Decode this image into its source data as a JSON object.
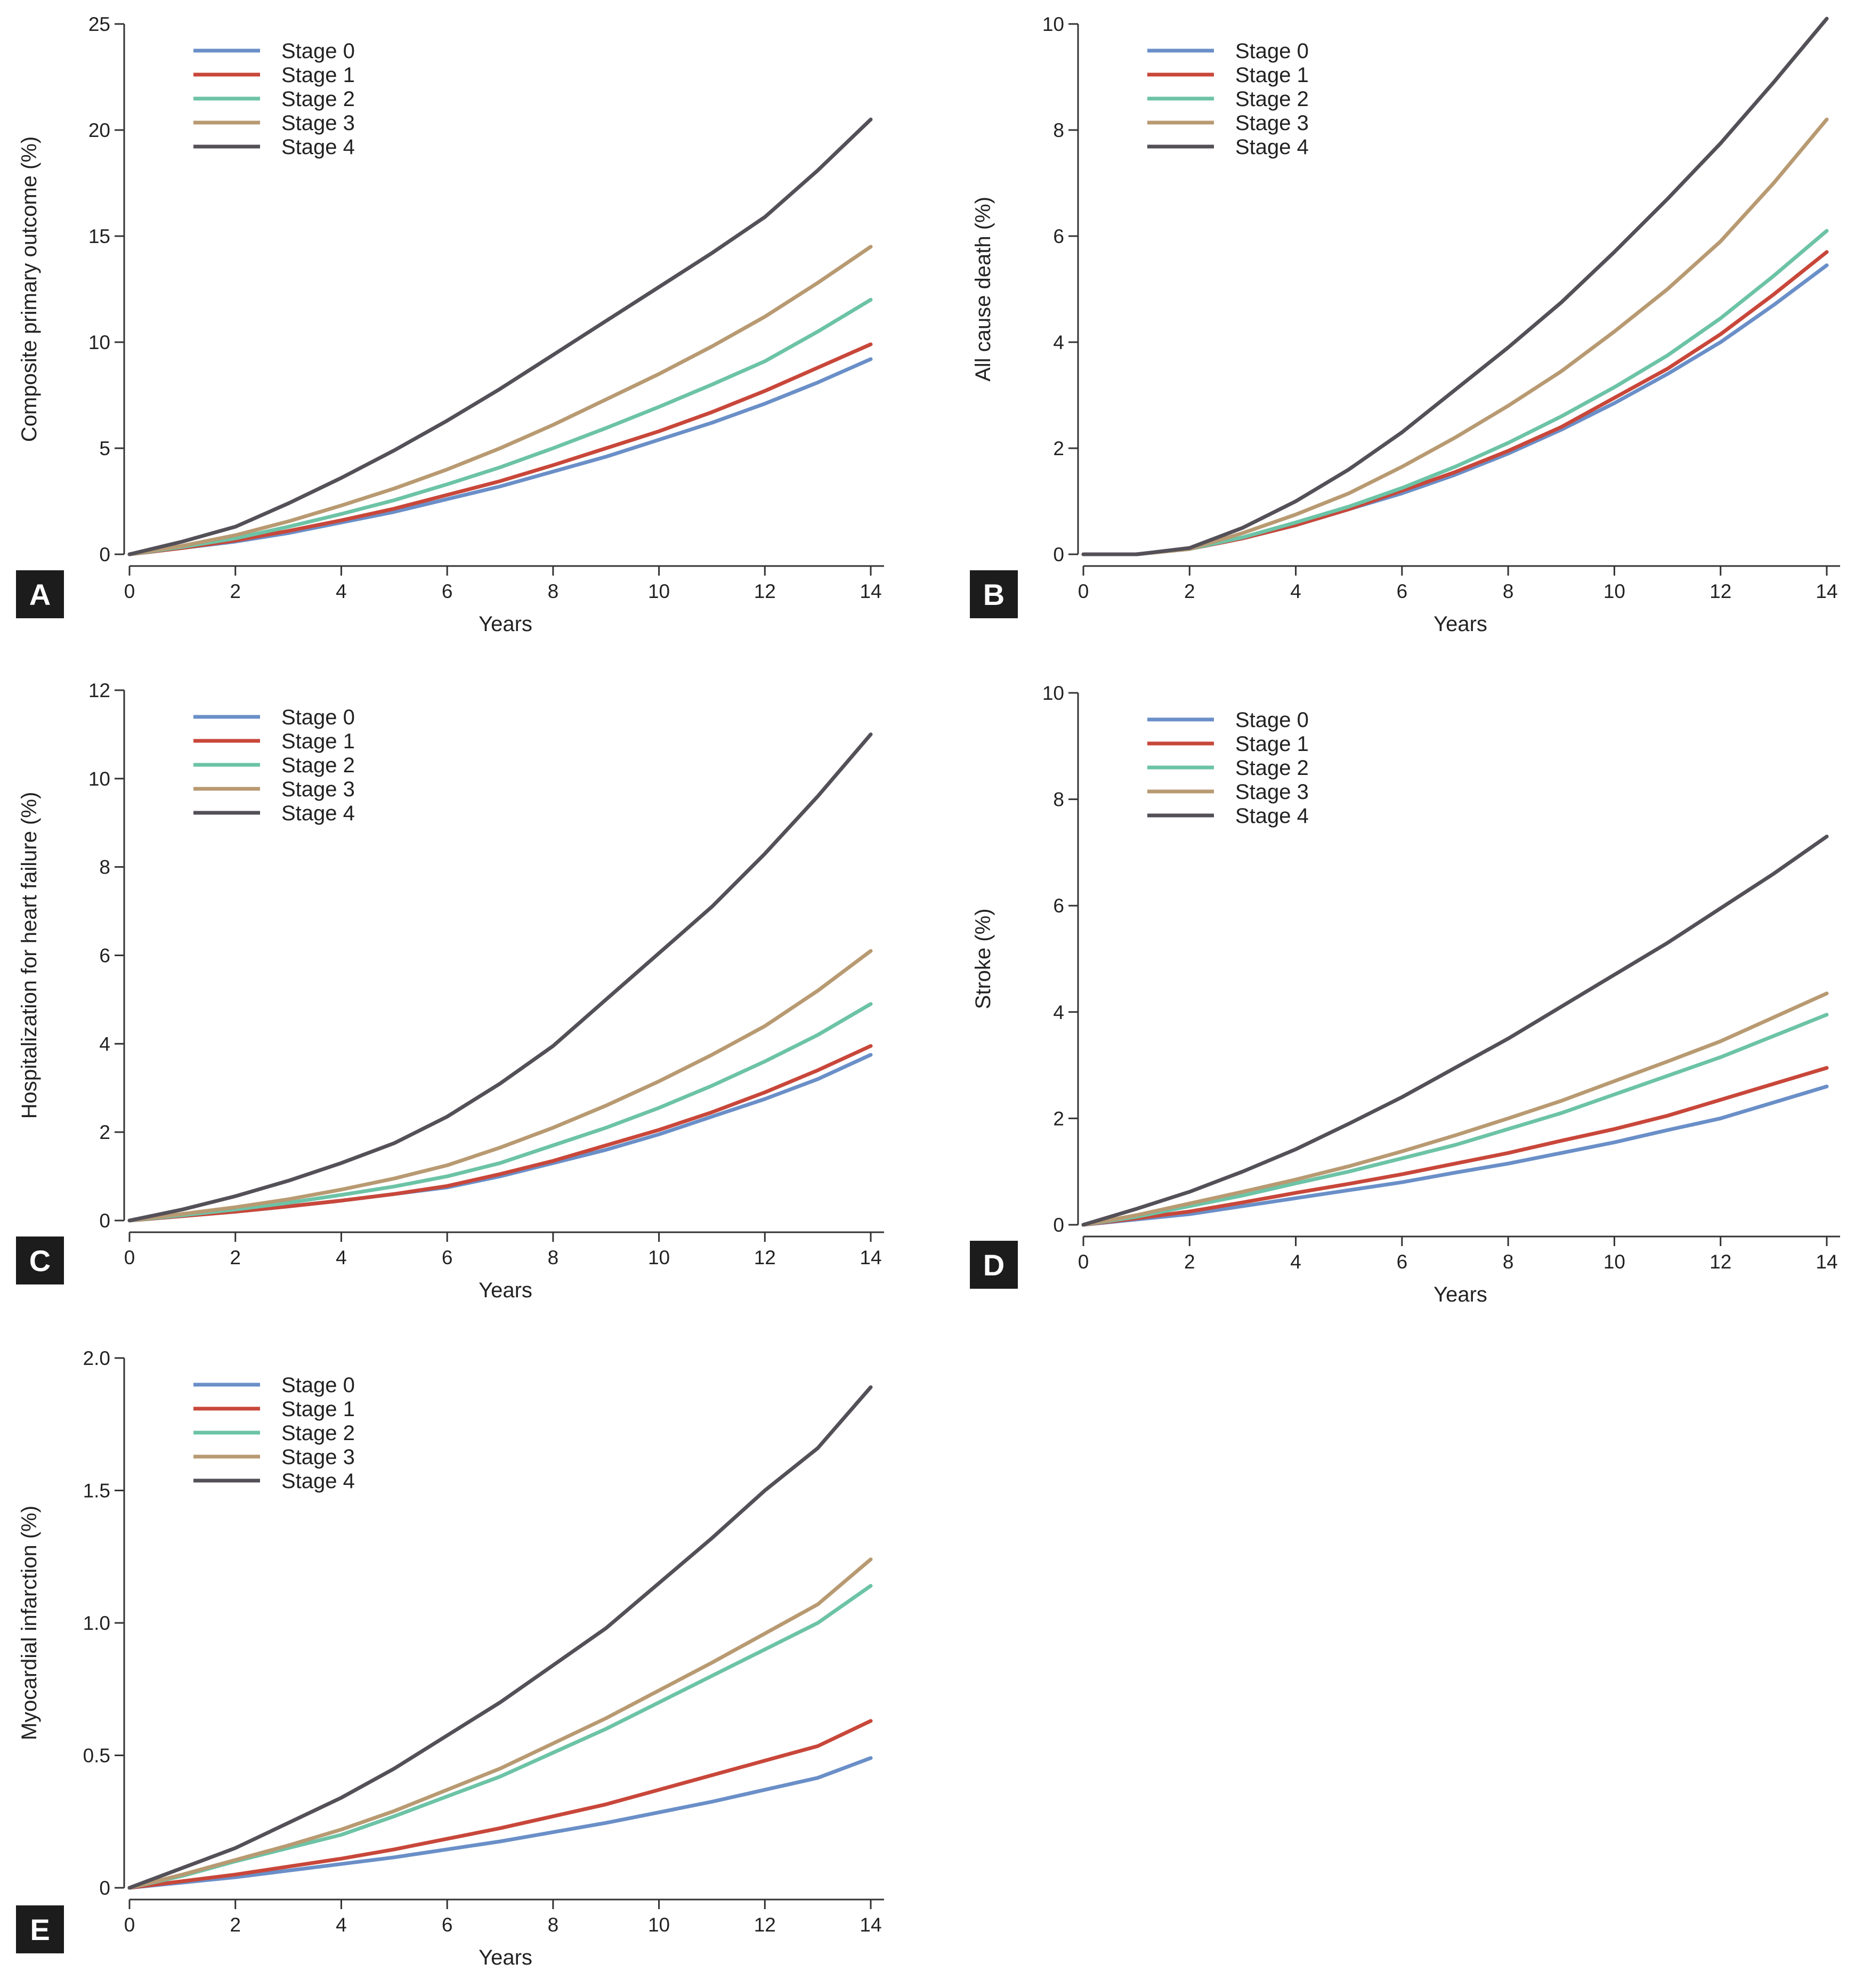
{
  "figure": {
    "panels": [
      "A",
      "B",
      "C",
      "D",
      "E"
    ]
  },
  "chart_data": [
    {
      "panel": "A",
      "type": "line",
      "title": "",
      "xlabel": "Years",
      "ylabel": "Composite primary outcome (%)",
      "xlim": [
        0,
        14
      ],
      "ylim": [
        0,
        25
      ],
      "xticks": [
        0,
        2,
        4,
        6,
        8,
        10,
        12,
        14
      ],
      "yticks": [
        0,
        5,
        10,
        15,
        20,
        25
      ],
      "x": [
        0,
        1,
        2,
        3,
        4,
        5,
        6,
        7,
        8,
        9,
        10,
        11,
        12,
        13,
        14
      ],
      "legend": "top-left",
      "series": [
        {
          "name": "Stage 0",
          "color": "#6a8fc8",
          "values": [
            0,
            0.3,
            0.6,
            1.0,
            1.5,
            2.0,
            2.6,
            3.2,
            3.9,
            4.6,
            5.4,
            6.2,
            7.1,
            8.1,
            9.2
          ]
        },
        {
          "name": "Stage 1",
          "color": "#c8473a",
          "values": [
            0,
            0.3,
            0.65,
            1.1,
            1.6,
            2.15,
            2.8,
            3.45,
            4.2,
            5.0,
            5.8,
            6.7,
            7.7,
            8.8,
            9.9
          ]
        },
        {
          "name": "Stage 2",
          "color": "#6cc3a6",
          "values": [
            0,
            0.35,
            0.75,
            1.3,
            1.9,
            2.55,
            3.3,
            4.1,
            5.0,
            5.95,
            6.95,
            8.0,
            9.1,
            10.5,
            12.0
          ]
        },
        {
          "name": "Stage 3",
          "color": "#b89a72",
          "values": [
            0,
            0.4,
            0.9,
            1.55,
            2.3,
            3.1,
            4.0,
            5.0,
            6.1,
            7.3,
            8.5,
            9.8,
            11.2,
            12.8,
            14.5
          ]
        },
        {
          "name": "Stage 4",
          "color": "#545058",
          "values": [
            0,
            0.6,
            1.3,
            2.4,
            3.6,
            4.9,
            6.3,
            7.8,
            9.4,
            11.0,
            12.6,
            14.2,
            15.9,
            18.1,
            20.5
          ]
        }
      ]
    },
    {
      "panel": "B",
      "type": "line",
      "title": "",
      "xlabel": "Years",
      "ylabel": "All cause death (%)",
      "xlim": [
        0,
        14
      ],
      "ylim": [
        0,
        10
      ],
      "xticks": [
        0,
        2,
        4,
        6,
        8,
        10,
        12,
        14
      ],
      "yticks": [
        0,
        2,
        4,
        6,
        8,
        10
      ],
      "x": [
        0,
        1,
        2,
        3,
        4,
        5,
        6,
        7,
        8,
        9,
        10,
        11,
        12,
        13,
        14
      ],
      "legend": "top-left",
      "series": [
        {
          "name": "Stage 0",
          "color": "#6a8fc8",
          "values": [
            0,
            0,
            0.1,
            0.3,
            0.55,
            0.85,
            1.15,
            1.5,
            1.9,
            2.35,
            2.85,
            3.4,
            4.0,
            4.7,
            5.45
          ]
        },
        {
          "name": "Stage 1",
          "color": "#c8473a",
          "values": [
            0,
            0,
            0.1,
            0.3,
            0.55,
            0.85,
            1.2,
            1.55,
            1.95,
            2.4,
            2.95,
            3.5,
            4.15,
            4.9,
            5.7
          ]
        },
        {
          "name": "Stage 2",
          "color": "#6cc3a6",
          "values": [
            0,
            0,
            0.1,
            0.32,
            0.6,
            0.9,
            1.25,
            1.65,
            2.1,
            2.6,
            3.15,
            3.75,
            4.45,
            5.25,
            6.1
          ]
        },
        {
          "name": "Stage 3",
          "color": "#b89a72",
          "values": [
            0,
            0,
            0.1,
            0.4,
            0.75,
            1.15,
            1.65,
            2.2,
            2.8,
            3.45,
            4.2,
            5.0,
            5.9,
            7.0,
            8.2
          ]
        },
        {
          "name": "Stage 4",
          "color": "#545058",
          "values": [
            0,
            0,
            0.12,
            0.5,
            1.0,
            1.6,
            2.3,
            3.1,
            3.9,
            4.75,
            5.7,
            6.7,
            7.75,
            8.9,
            10.1
          ]
        }
      ]
    },
    {
      "panel": "C",
      "type": "line",
      "title": "",
      "xlabel": "Years",
      "ylabel": "Hospitalization for heart failure (%)",
      "xlim": [
        0,
        14
      ],
      "ylim": [
        0,
        12
      ],
      "xticks": [
        0,
        2,
        4,
        6,
        8,
        10,
        12,
        14
      ],
      "yticks": [
        0,
        2,
        4,
        6,
        8,
        10,
        12
      ],
      "x": [
        0,
        1,
        2,
        3,
        4,
        5,
        6,
        7,
        8,
        9,
        10,
        11,
        12,
        13,
        14
      ],
      "legend": "top-left",
      "series": [
        {
          "name": "Stage 0",
          "color": "#6a8fc8",
          "values": [
            0,
            0.1,
            0.2,
            0.32,
            0.45,
            0.6,
            0.75,
            1.0,
            1.3,
            1.6,
            1.95,
            2.35,
            2.75,
            3.2,
            3.75
          ]
        },
        {
          "name": "Stage 1",
          "color": "#c8473a",
          "values": [
            0,
            0.1,
            0.2,
            0.32,
            0.45,
            0.6,
            0.78,
            1.05,
            1.35,
            1.7,
            2.05,
            2.45,
            2.9,
            3.4,
            3.95
          ]
        },
        {
          "name": "Stage 2",
          "color": "#6cc3a6",
          "values": [
            0,
            0.12,
            0.25,
            0.4,
            0.58,
            0.77,
            1.0,
            1.3,
            1.7,
            2.1,
            2.55,
            3.05,
            3.6,
            4.2,
            4.9
          ]
        },
        {
          "name": "Stage 3",
          "color": "#b89a72",
          "values": [
            0,
            0.15,
            0.3,
            0.48,
            0.7,
            0.95,
            1.25,
            1.65,
            2.1,
            2.6,
            3.15,
            3.75,
            4.4,
            5.2,
            6.1
          ]
        },
        {
          "name": "Stage 4",
          "color": "#545058",
          "values": [
            0,
            0.25,
            0.55,
            0.9,
            1.3,
            1.75,
            2.35,
            3.1,
            3.95,
            5.0,
            6.05,
            7.1,
            8.3,
            9.6,
            11.0
          ]
        }
      ]
    },
    {
      "panel": "D",
      "type": "line",
      "title": "",
      "xlabel": "Years",
      "ylabel": "Stroke (%)",
      "xlim": [
        0,
        14
      ],
      "ylim": [
        0,
        10
      ],
      "xticks": [
        0,
        2,
        4,
        6,
        8,
        10,
        12,
        14
      ],
      "yticks": [
        0,
        2,
        4,
        6,
        8,
        10
      ],
      "x": [
        0,
        1,
        2,
        3,
        4,
        5,
        6,
        7,
        8,
        9,
        10,
        11,
        12,
        13,
        14
      ],
      "legend": "top-left",
      "series": [
        {
          "name": "Stage 0",
          "color": "#6a8fc8",
          "values": [
            0,
            0.1,
            0.2,
            0.35,
            0.5,
            0.65,
            0.8,
            0.98,
            1.15,
            1.35,
            1.55,
            1.78,
            2.0,
            2.3,
            2.6
          ]
        },
        {
          "name": "Stage 1",
          "color": "#c8473a",
          "values": [
            0,
            0.12,
            0.25,
            0.42,
            0.6,
            0.77,
            0.95,
            1.15,
            1.35,
            1.58,
            1.8,
            2.05,
            2.35,
            2.65,
            2.95
          ]
        },
        {
          "name": "Stage 2",
          "color": "#6cc3a6",
          "values": [
            0,
            0.15,
            0.35,
            0.55,
            0.78,
            1.0,
            1.25,
            1.5,
            1.8,
            2.1,
            2.45,
            2.8,
            3.15,
            3.55,
            3.95
          ]
        },
        {
          "name": "Stage 3",
          "color": "#b89a72",
          "values": [
            0,
            0.18,
            0.4,
            0.62,
            0.85,
            1.1,
            1.38,
            1.68,
            2.0,
            2.33,
            2.7,
            3.07,
            3.45,
            3.9,
            4.35
          ]
        },
        {
          "name": "Stage 4",
          "color": "#545058",
          "values": [
            0,
            0.3,
            0.62,
            1.0,
            1.42,
            1.9,
            2.4,
            2.95,
            3.5,
            4.1,
            4.7,
            5.3,
            5.95,
            6.6,
            7.3
          ]
        }
      ]
    },
    {
      "panel": "E",
      "type": "line",
      "title": "",
      "xlabel": "Years",
      "ylabel": "Myocardial infarction (%)",
      "xlim": [
        0,
        14
      ],
      "ylim": [
        0,
        2.0
      ],
      "xticks": [
        0,
        2,
        4,
        6,
        8,
        10,
        12,
        14
      ],
      "yticks": [
        0,
        0.5,
        1.0,
        1.5,
        2.0
      ],
      "ytick_labels": [
        "0",
        "0.5",
        "1.0",
        "1.5",
        "2.0"
      ],
      "x": [
        0,
        1,
        2,
        3,
        4,
        5,
        6,
        7,
        8,
        9,
        10,
        11,
        12,
        13,
        14
      ],
      "legend": "top-left",
      "series": [
        {
          "name": "Stage 0",
          "color": "#6a8fc8",
          "values": [
            0,
            0.02,
            0.04,
            0.065,
            0.09,
            0.115,
            0.145,
            0.175,
            0.21,
            0.245,
            0.285,
            0.325,
            0.37,
            0.415,
            0.49
          ]
        },
        {
          "name": "Stage 1",
          "color": "#c8473a",
          "values": [
            0,
            0.025,
            0.05,
            0.08,
            0.11,
            0.145,
            0.185,
            0.225,
            0.27,
            0.315,
            0.37,
            0.425,
            0.48,
            0.535,
            0.63
          ]
        },
        {
          "name": "Stage 2",
          "color": "#6cc3a6",
          "values": [
            0,
            0.045,
            0.1,
            0.15,
            0.2,
            0.27,
            0.345,
            0.42,
            0.51,
            0.6,
            0.7,
            0.8,
            0.9,
            1.0,
            1.14
          ]
        },
        {
          "name": "Stage 3",
          "color": "#b89a72",
          "values": [
            0,
            0.05,
            0.105,
            0.16,
            0.22,
            0.29,
            0.37,
            0.45,
            0.545,
            0.64,
            0.745,
            0.85,
            0.96,
            1.07,
            1.24
          ]
        },
        {
          "name": "Stage 4",
          "color": "#545058",
          "values": [
            0,
            0.075,
            0.15,
            0.245,
            0.34,
            0.45,
            0.575,
            0.7,
            0.84,
            0.98,
            1.15,
            1.32,
            1.5,
            1.66,
            1.89
          ]
        }
      ]
    }
  ]
}
